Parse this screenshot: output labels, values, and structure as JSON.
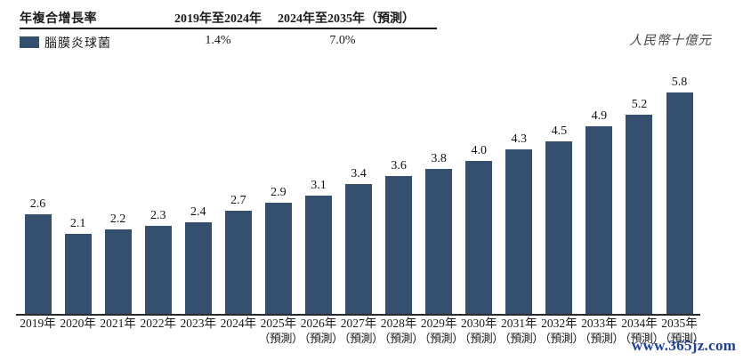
{
  "header": {
    "row_label": "年複合增長率",
    "col1_header": "2019年至2024年",
    "col2_header": "2024年至2035年（預測）",
    "series_label": "腦膜炎球菌",
    "cagr_2019_2024": "1.4%",
    "cagr_2024_2035": "7.0%",
    "unit_label": "人民幣十億元"
  },
  "colors": {
    "bar": "#35506e",
    "watermark": "#1d3da0",
    "text": "#1a1a1a"
  },
  "watermark": {
    "text": "www.365jz.com"
  },
  "chart_data": {
    "type": "bar",
    "title": "",
    "series_name": "腦膜炎球菌",
    "categories": [
      "2019年",
      "2020年",
      "2021年",
      "2022年",
      "2023年",
      "2024年",
      "2025年",
      "2026年",
      "2027年",
      "2028年",
      "2029年",
      "2030年",
      "2031年",
      "2032年",
      "2033年",
      "2034年",
      "2035年"
    ],
    "values": [
      2.6,
      2.1,
      2.2,
      2.3,
      2.4,
      2.7,
      2.9,
      3.1,
      3.4,
      3.6,
      3.8,
      4.0,
      4.3,
      4.5,
      4.9,
      5.2,
      5.8
    ],
    "forecast_from_index": 6,
    "forecast_note": "（預測）",
    "xlabel": "",
    "ylabel": "人民幣十億元",
    "ylim": [
      0,
      6
    ],
    "grid": false,
    "legend_position": "top-left",
    "data_labels_shown": true,
    "cagr_annotations": [
      {
        "period": "2019年至2024年",
        "value": "1.4%"
      },
      {
        "period": "2024年至2035年（預測）",
        "value": "7.0%"
      }
    ]
  }
}
